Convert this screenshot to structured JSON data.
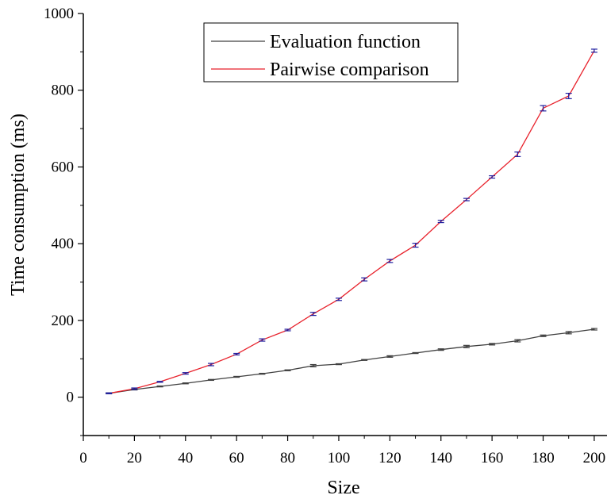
{
  "chart_data": {
    "type": "line",
    "title": "",
    "xlabel": "Size",
    "ylabel": "Time consumption (ms)",
    "xlim": [
      0,
      205
    ],
    "ylim": [
      -100,
      1000
    ],
    "x_ticks": [
      0,
      20,
      40,
      60,
      80,
      100,
      120,
      140,
      160,
      180,
      200
    ],
    "y_ticks": [
      0,
      200,
      400,
      600,
      800,
      1000
    ],
    "grid": false,
    "legend_position": "top-center",
    "x": [
      10,
      20,
      30,
      40,
      50,
      60,
      70,
      80,
      90,
      100,
      110,
      120,
      130,
      140,
      150,
      160,
      170,
      180,
      190,
      200
    ],
    "series": [
      {
        "name": "Evaluation function",
        "color": "#404040",
        "errorbar_color": "#404040",
        "values": [
          10,
          20,
          28,
          36,
          45,
          53,
          61,
          70,
          82,
          86,
          97,
          106,
          115,
          124,
          132,
          138,
          147,
          160,
          168,
          177
        ],
        "errors": [
          1,
          1,
          1,
          1,
          1,
          1,
          1,
          1,
          3,
          1,
          1,
          2,
          1,
          2,
          3,
          2,
          3,
          2,
          3,
          2
        ]
      },
      {
        "name": "Pairwise comparison",
        "color": "#e8222c",
        "errorbar_color": "#1f1f9f",
        "values": [
          10,
          22,
          40,
          62,
          85,
          112,
          149,
          175,
          217,
          255,
          307,
          355,
          396,
          458,
          515,
          574,
          633,
          753,
          785,
          903
        ],
        "errors": [
          1,
          2,
          1,
          2,
          3,
          2,
          3,
          2,
          4,
          3,
          4,
          4,
          5,
          3,
          3,
          3,
          6,
          7,
          7,
          4
        ]
      }
    ]
  }
}
